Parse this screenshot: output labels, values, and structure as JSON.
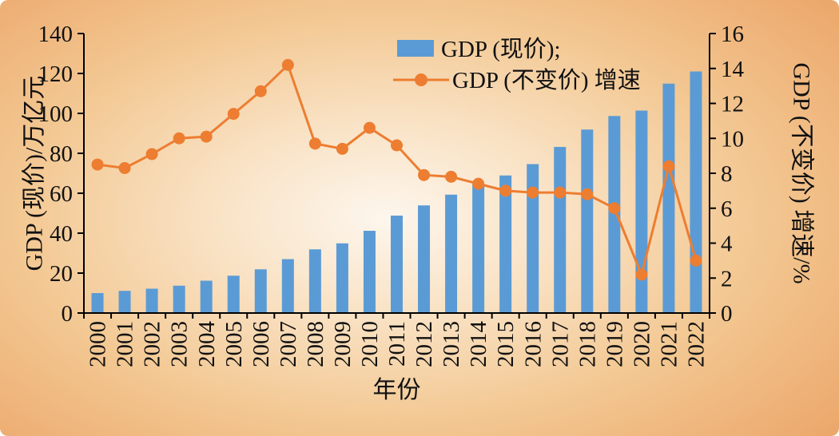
{
  "chart_data": {
    "type": "bar+line",
    "title": "",
    "categories": [
      "2000",
      "2001",
      "2002",
      "2003",
      "2004",
      "2005",
      "2006",
      "2007",
      "2008",
      "2009",
      "2010",
      "2011",
      "2012",
      "2013",
      "2014",
      "2015",
      "2016",
      "2017",
      "2018",
      "2019",
      "2020",
      "2021",
      "2022"
    ],
    "series": [
      {
        "name": "GDP (现价);",
        "type": "bar",
        "axis": "left",
        "color": "#5B9BD5",
        "values": [
          10.0,
          11.1,
          12.2,
          13.7,
          16.2,
          18.7,
          21.9,
          27.0,
          31.9,
          34.9,
          41.2,
          48.8,
          53.9,
          59.3,
          64.4,
          68.9,
          74.6,
          83.2,
          91.9,
          98.7,
          101.4,
          114.9,
          121.0
        ]
      },
      {
        "name": "GDP (不变价) 增速",
        "type": "line",
        "axis": "right",
        "color": "#ED7D31",
        "values": [
          8.5,
          8.3,
          9.1,
          10.0,
          10.1,
          11.4,
          12.7,
          14.2,
          9.7,
          9.4,
          10.6,
          9.6,
          7.9,
          7.8,
          7.4,
          7.0,
          6.9,
          6.9,
          6.8,
          6.0,
          2.2,
          8.4,
          3.0
        ]
      }
    ],
    "xlabel": "年份",
    "ylabel_left": "GDP (现价)/万亿元",
    "ylabel_right": "GDP (不变价) 增速/%",
    "left_axis": {
      "min": 0,
      "max": 140,
      "ticks": [
        0,
        20,
        40,
        60,
        80,
        100,
        120,
        140
      ]
    },
    "right_axis": {
      "min": 0,
      "max": 16,
      "ticks": [
        0,
        2,
        4,
        6,
        8,
        10,
        12,
        14,
        16
      ]
    },
    "legend_position": "top-center",
    "grid": false
  },
  "style": {
    "bar_color": "#5B9BD5",
    "line_color": "#ED7D31",
    "axis_color": "#000000",
    "text_color": "#111111",
    "background_center": "#fdf6ed",
    "background_edge": "#eca86c"
  }
}
